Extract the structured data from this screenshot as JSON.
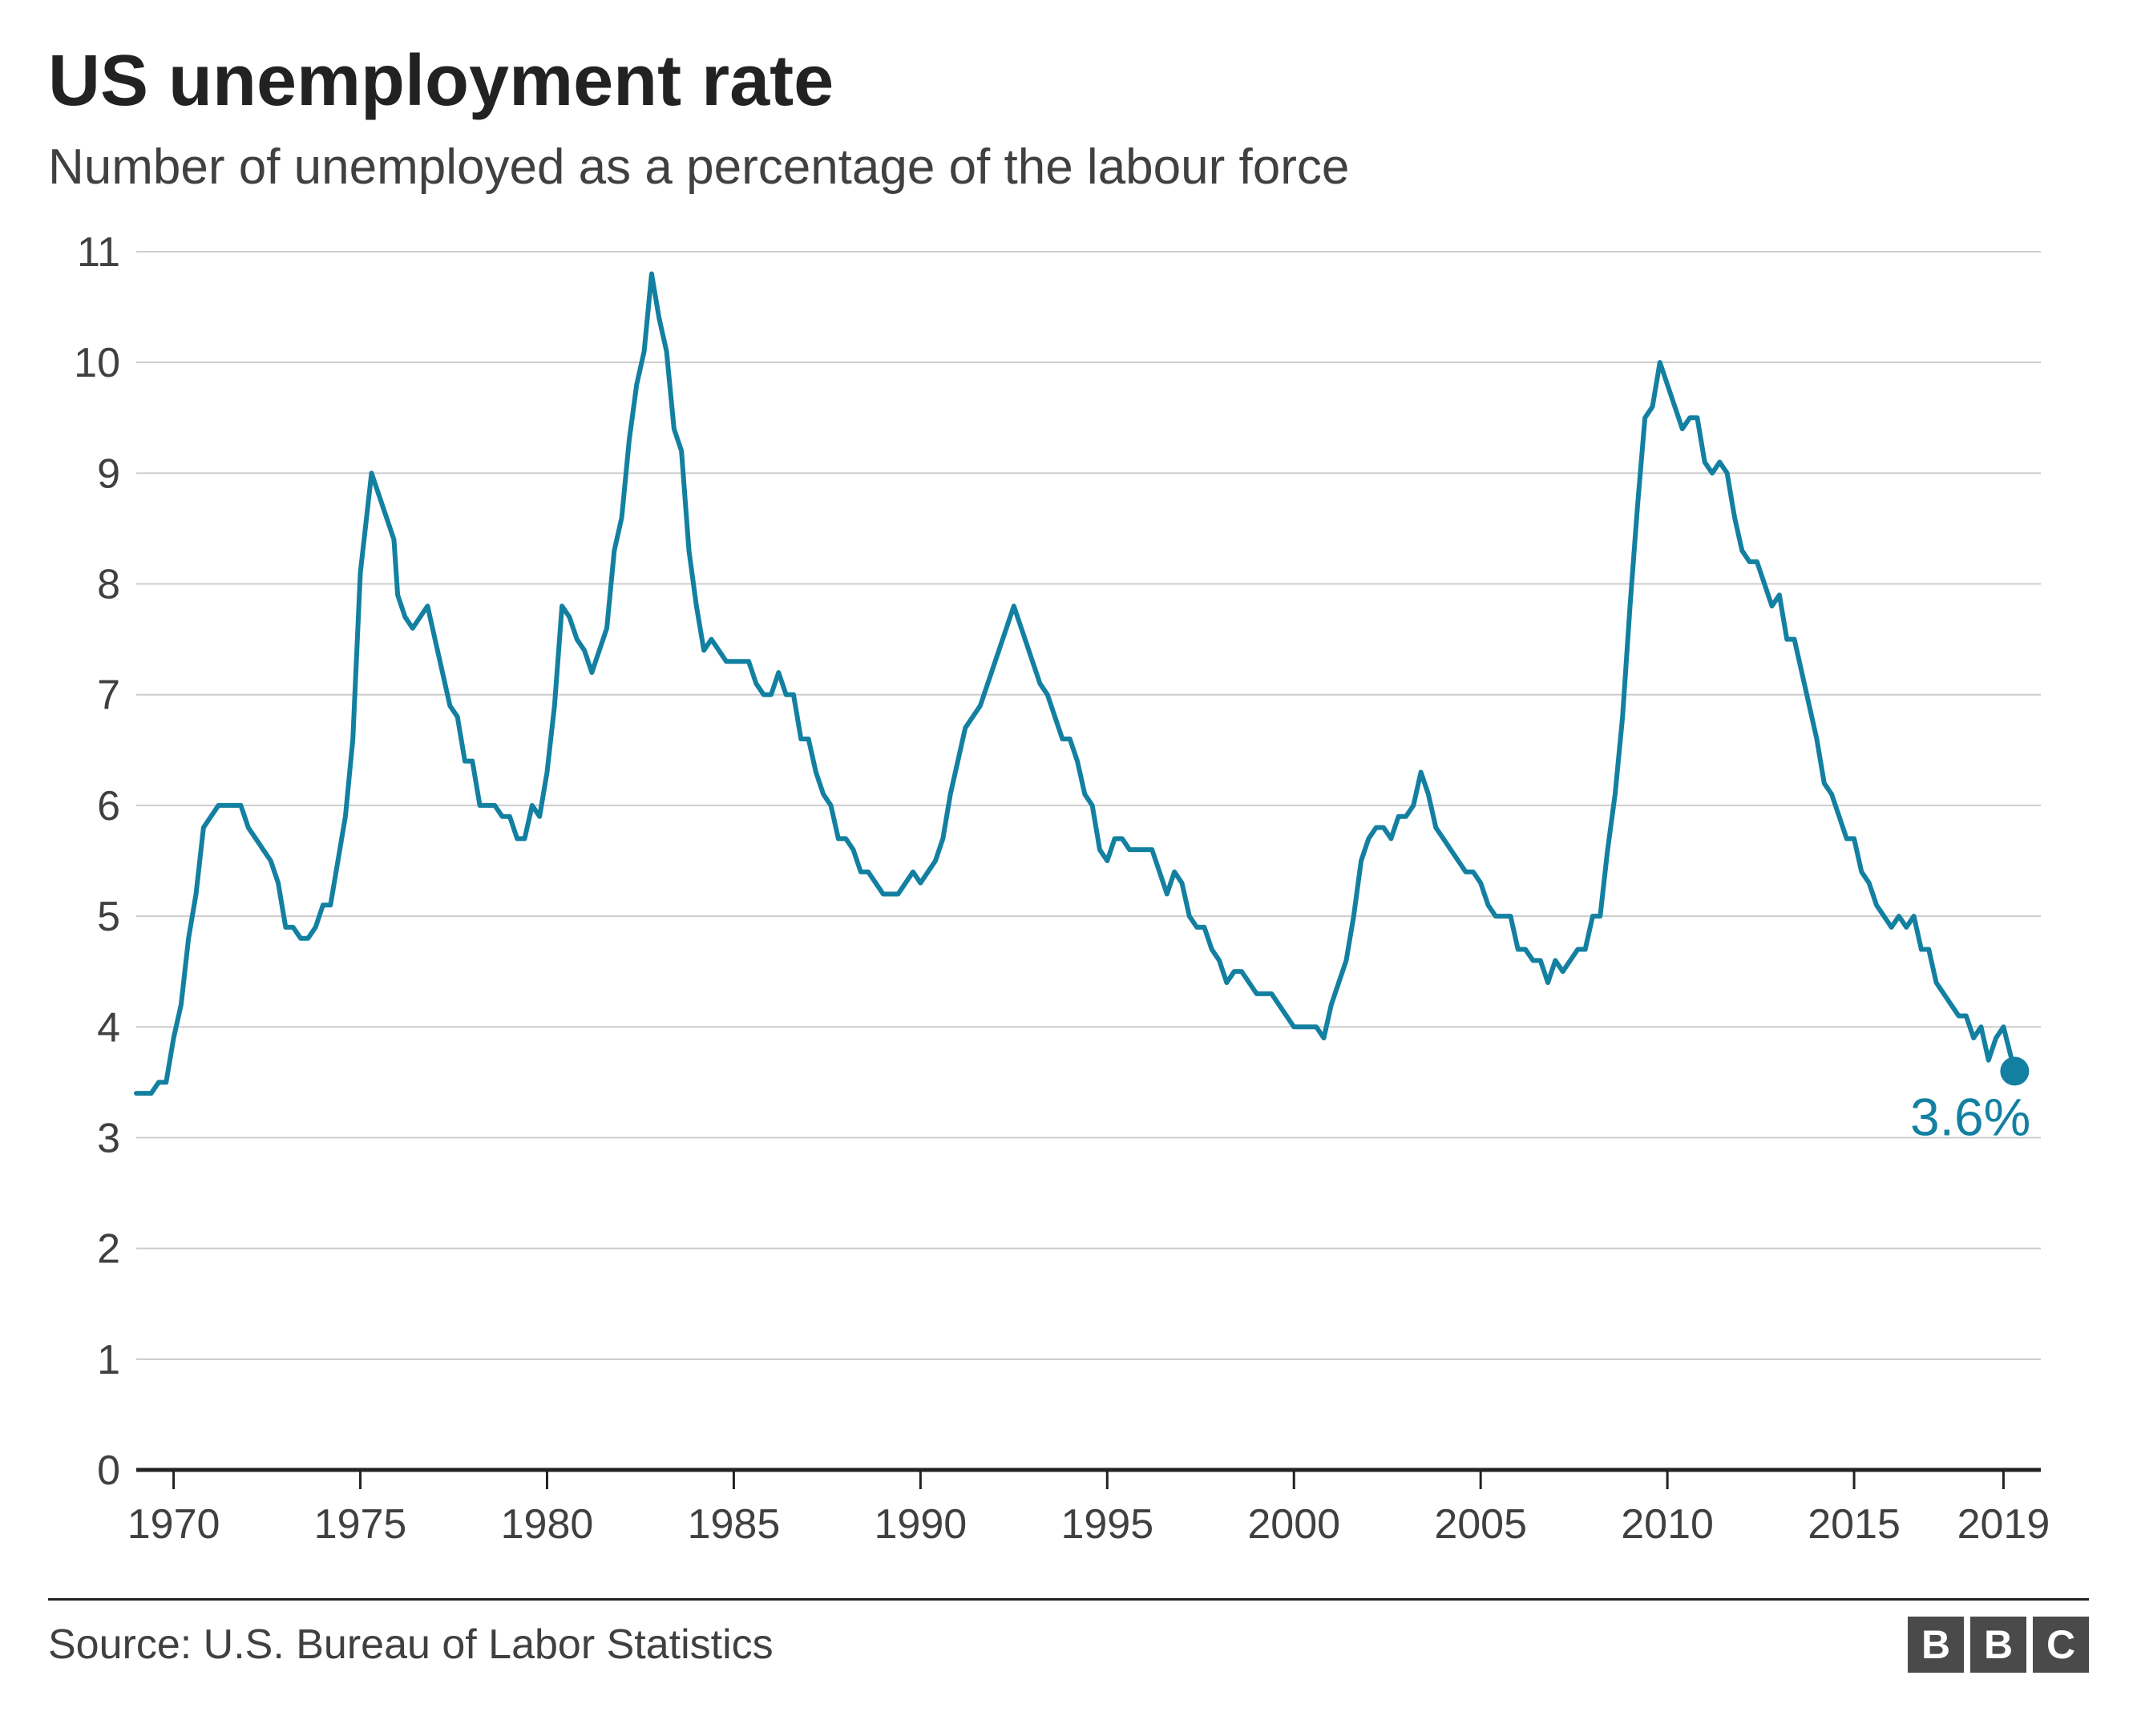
{
  "title": "US unemployment rate",
  "subtitle": "Number of unemployed as a percentage of the labour force",
  "source": "Source: U.S. Bureau of Labor Statistics",
  "logo_letters": [
    "B",
    "B",
    "C"
  ],
  "logo_bg": "#4a4a4a",
  "logo_fg": "#ffffff",
  "chart": {
    "type": "line",
    "background_color": "#ffffff",
    "grid_color": "#cccccc",
    "axis_color": "#222222",
    "tick_label_color": "#404040",
    "tick_fontsize": 52,
    "line_color": "#1380a1",
    "line_width": 6,
    "endpoint_marker_radius": 18,
    "endpoint_label": "3.6%",
    "endpoint_label_color": "#1380a1",
    "endpoint_label_fontsize": 66,
    "xlim": [
      1969,
      2020
    ],
    "ylim": [
      0,
      11
    ],
    "ytick_step": 1,
    "yticks": [
      0,
      1,
      2,
      3,
      4,
      5,
      6,
      7,
      8,
      9,
      10,
      11
    ],
    "xticks": [
      1970,
      1975,
      1980,
      1985,
      1990,
      1995,
      2000,
      2005,
      2010,
      2015,
      2019
    ],
    "series": [
      [
        1969.0,
        3.4
      ],
      [
        1969.2,
        3.4
      ],
      [
        1969.4,
        3.4
      ],
      [
        1969.6,
        3.5
      ],
      [
        1969.8,
        3.5
      ],
      [
        1970.0,
        3.9
      ],
      [
        1970.2,
        4.2
      ],
      [
        1970.4,
        4.8
      ],
      [
        1970.6,
        5.2
      ],
      [
        1970.8,
        5.8
      ],
      [
        1971.0,
        5.9
      ],
      [
        1971.2,
        6.0
      ],
      [
        1971.4,
        6.0
      ],
      [
        1971.6,
        6.0
      ],
      [
        1971.8,
        6.0
      ],
      [
        1972.0,
        5.8
      ],
      [
        1972.2,
        5.7
      ],
      [
        1972.4,
        5.6
      ],
      [
        1972.6,
        5.5
      ],
      [
        1972.8,
        5.3
      ],
      [
        1973.0,
        4.9
      ],
      [
        1973.2,
        4.9
      ],
      [
        1973.4,
        4.8
      ],
      [
        1973.6,
        4.8
      ],
      [
        1973.8,
        4.9
      ],
      [
        1974.0,
        5.1
      ],
      [
        1974.2,
        5.1
      ],
      [
        1974.4,
        5.5
      ],
      [
        1974.6,
        5.9
      ],
      [
        1974.8,
        6.6
      ],
      [
        1975.0,
        8.1
      ],
      [
        1975.3,
        9.0
      ],
      [
        1975.5,
        8.8
      ],
      [
        1975.7,
        8.6
      ],
      [
        1975.9,
        8.4
      ],
      [
        1976.0,
        7.9
      ],
      [
        1976.2,
        7.7
      ],
      [
        1976.4,
        7.6
      ],
      [
        1976.6,
        7.7
      ],
      [
        1976.8,
        7.8
      ],
      [
        1977.0,
        7.5
      ],
      [
        1977.2,
        7.2
      ],
      [
        1977.4,
        6.9
      ],
      [
        1977.6,
        6.8
      ],
      [
        1977.8,
        6.4
      ],
      [
        1978.0,
        6.4
      ],
      [
        1978.2,
        6.0
      ],
      [
        1978.4,
        6.0
      ],
      [
        1978.6,
        6.0
      ],
      [
        1978.8,
        5.9
      ],
      [
        1979.0,
        5.9
      ],
      [
        1979.2,
        5.7
      ],
      [
        1979.4,
        5.7
      ],
      [
        1979.6,
        6.0
      ],
      [
        1979.8,
        5.9
      ],
      [
        1980.0,
        6.3
      ],
      [
        1980.2,
        6.9
      ],
      [
        1980.4,
        7.8
      ],
      [
        1980.6,
        7.7
      ],
      [
        1980.8,
        7.5
      ],
      [
        1981.0,
        7.4
      ],
      [
        1981.2,
        7.2
      ],
      [
        1981.4,
        7.4
      ],
      [
        1981.6,
        7.6
      ],
      [
        1981.8,
        8.3
      ],
      [
        1982.0,
        8.6
      ],
      [
        1982.2,
        9.3
      ],
      [
        1982.4,
        9.8
      ],
      [
        1982.6,
        10.1
      ],
      [
        1982.8,
        10.8
      ],
      [
        1983.0,
        10.4
      ],
      [
        1983.2,
        10.1
      ],
      [
        1983.4,
        9.4
      ],
      [
        1983.6,
        9.2
      ],
      [
        1983.8,
        8.3
      ],
      [
        1984.0,
        7.8
      ],
      [
        1984.2,
        7.4
      ],
      [
        1984.4,
        7.5
      ],
      [
        1984.6,
        7.4
      ],
      [
        1984.8,
        7.3
      ],
      [
        1985.0,
        7.3
      ],
      [
        1985.2,
        7.3
      ],
      [
        1985.4,
        7.3
      ],
      [
        1985.6,
        7.1
      ],
      [
        1985.8,
        7.0
      ],
      [
        1986.0,
        7.0
      ],
      [
        1986.2,
        7.2
      ],
      [
        1986.4,
        7.0
      ],
      [
        1986.6,
        7.0
      ],
      [
        1986.8,
        6.6
      ],
      [
        1987.0,
        6.6
      ],
      [
        1987.2,
        6.3
      ],
      [
        1987.4,
        6.1
      ],
      [
        1987.6,
        6.0
      ],
      [
        1987.8,
        5.7
      ],
      [
        1988.0,
        5.7
      ],
      [
        1988.2,
        5.6
      ],
      [
        1988.4,
        5.4
      ],
      [
        1988.6,
        5.4
      ],
      [
        1988.8,
        5.3
      ],
      [
        1989.0,
        5.2
      ],
      [
        1989.2,
        5.2
      ],
      [
        1989.4,
        5.2
      ],
      [
        1989.6,
        5.3
      ],
      [
        1989.8,
        5.4
      ],
      [
        1990.0,
        5.3
      ],
      [
        1990.2,
        5.4
      ],
      [
        1990.4,
        5.5
      ],
      [
        1990.6,
        5.7
      ],
      [
        1990.8,
        6.1
      ],
      [
        1991.0,
        6.4
      ],
      [
        1991.2,
        6.7
      ],
      [
        1991.4,
        6.8
      ],
      [
        1991.6,
        6.9
      ],
      [
        1991.8,
        7.1
      ],
      [
        1992.0,
        7.3
      ],
      [
        1992.3,
        7.6
      ],
      [
        1992.5,
        7.8
      ],
      [
        1992.7,
        7.6
      ],
      [
        1992.9,
        7.4
      ],
      [
        1993.0,
        7.3
      ],
      [
        1993.2,
        7.1
      ],
      [
        1993.4,
        7.0
      ],
      [
        1993.6,
        6.8
      ],
      [
        1993.8,
        6.6
      ],
      [
        1994.0,
        6.6
      ],
      [
        1994.2,
        6.4
      ],
      [
        1994.4,
        6.1
      ],
      [
        1994.6,
        6.0
      ],
      [
        1994.8,
        5.6
      ],
      [
        1995.0,
        5.5
      ],
      [
        1995.2,
        5.7
      ],
      [
        1995.4,
        5.7
      ],
      [
        1995.6,
        5.6
      ],
      [
        1995.8,
        5.6
      ],
      [
        1996.0,
        5.6
      ],
      [
        1996.2,
        5.6
      ],
      [
        1996.4,
        5.4
      ],
      [
        1996.6,
        5.2
      ],
      [
        1996.8,
        5.4
      ],
      [
        1997.0,
        5.3
      ],
      [
        1997.2,
        5.0
      ],
      [
        1997.4,
        4.9
      ],
      [
        1997.6,
        4.9
      ],
      [
        1997.8,
        4.7
      ],
      [
        1998.0,
        4.6
      ],
      [
        1998.2,
        4.4
      ],
      [
        1998.4,
        4.5
      ],
      [
        1998.6,
        4.5
      ],
      [
        1998.8,
        4.4
      ],
      [
        1999.0,
        4.3
      ],
      [
        1999.2,
        4.3
      ],
      [
        1999.4,
        4.3
      ],
      [
        1999.6,
        4.2
      ],
      [
        1999.8,
        4.1
      ],
      [
        2000.0,
        4.0
      ],
      [
        2000.2,
        4.0
      ],
      [
        2000.4,
        4.0
      ],
      [
        2000.6,
        4.0
      ],
      [
        2000.8,
        3.9
      ],
      [
        2001.0,
        4.2
      ],
      [
        2001.2,
        4.4
      ],
      [
        2001.4,
        4.6
      ],
      [
        2001.6,
        5.0
      ],
      [
        2001.8,
        5.5
      ],
      [
        2002.0,
        5.7
      ],
      [
        2002.2,
        5.8
      ],
      [
        2002.4,
        5.8
      ],
      [
        2002.6,
        5.7
      ],
      [
        2002.8,
        5.9
      ],
      [
        2003.0,
        5.9
      ],
      [
        2003.2,
        6.0
      ],
      [
        2003.4,
        6.3
      ],
      [
        2003.6,
        6.1
      ],
      [
        2003.8,
        5.8
      ],
      [
        2004.0,
        5.7
      ],
      [
        2004.2,
        5.6
      ],
      [
        2004.4,
        5.5
      ],
      [
        2004.6,
        5.4
      ],
      [
        2004.8,
        5.4
      ],
      [
        2005.0,
        5.3
      ],
      [
        2005.2,
        5.1
      ],
      [
        2005.4,
        5.0
      ],
      [
        2005.6,
        5.0
      ],
      [
        2005.8,
        5.0
      ],
      [
        2006.0,
        4.7
      ],
      [
        2006.2,
        4.7
      ],
      [
        2006.4,
        4.6
      ],
      [
        2006.6,
        4.6
      ],
      [
        2006.8,
        4.4
      ],
      [
        2007.0,
        4.6
      ],
      [
        2007.2,
        4.5
      ],
      [
        2007.4,
        4.6
      ],
      [
        2007.6,
        4.7
      ],
      [
        2007.8,
        4.7
      ],
      [
        2008.0,
        5.0
      ],
      [
        2008.2,
        5.0
      ],
      [
        2008.4,
        5.6
      ],
      [
        2008.6,
        6.1
      ],
      [
        2008.8,
        6.8
      ],
      [
        2009.0,
        7.8
      ],
      [
        2009.2,
        8.7
      ],
      [
        2009.4,
        9.5
      ],
      [
        2009.6,
        9.6
      ],
      [
        2009.8,
        10.0
      ],
      [
        2010.0,
        9.8
      ],
      [
        2010.2,
        9.6
      ],
      [
        2010.4,
        9.4
      ],
      [
        2010.6,
        9.5
      ],
      [
        2010.8,
        9.5
      ],
      [
        2011.0,
        9.1
      ],
      [
        2011.2,
        9.0
      ],
      [
        2011.4,
        9.1
      ],
      [
        2011.6,
        9.0
      ],
      [
        2011.8,
        8.6
      ],
      [
        2012.0,
        8.3
      ],
      [
        2012.2,
        8.2
      ],
      [
        2012.4,
        8.2
      ],
      [
        2012.6,
        8.0
      ],
      [
        2012.8,
        7.8
      ],
      [
        2013.0,
        7.9
      ],
      [
        2013.2,
        7.5
      ],
      [
        2013.4,
        7.5
      ],
      [
        2013.6,
        7.2
      ],
      [
        2013.8,
        6.9
      ],
      [
        2014.0,
        6.6
      ],
      [
        2014.2,
        6.2
      ],
      [
        2014.4,
        6.1
      ],
      [
        2014.6,
        5.9
      ],
      [
        2014.8,
        5.7
      ],
      [
        2015.0,
        5.7
      ],
      [
        2015.2,
        5.4
      ],
      [
        2015.4,
        5.3
      ],
      [
        2015.6,
        5.1
      ],
      [
        2015.8,
        5.0
      ],
      [
        2016.0,
        4.9
      ],
      [
        2016.2,
        5.0
      ],
      [
        2016.4,
        4.9
      ],
      [
        2016.6,
        5.0
      ],
      [
        2016.8,
        4.7
      ],
      [
        2017.0,
        4.7
      ],
      [
        2017.2,
        4.4
      ],
      [
        2017.4,
        4.3
      ],
      [
        2017.6,
        4.2
      ],
      [
        2017.8,
        4.1
      ],
      [
        2018.0,
        4.1
      ],
      [
        2018.2,
        3.9
      ],
      [
        2018.4,
        4.0
      ],
      [
        2018.6,
        3.7
      ],
      [
        2018.8,
        3.9
      ],
      [
        2019.0,
        4.0
      ],
      [
        2019.3,
        3.6
      ]
    ]
  }
}
